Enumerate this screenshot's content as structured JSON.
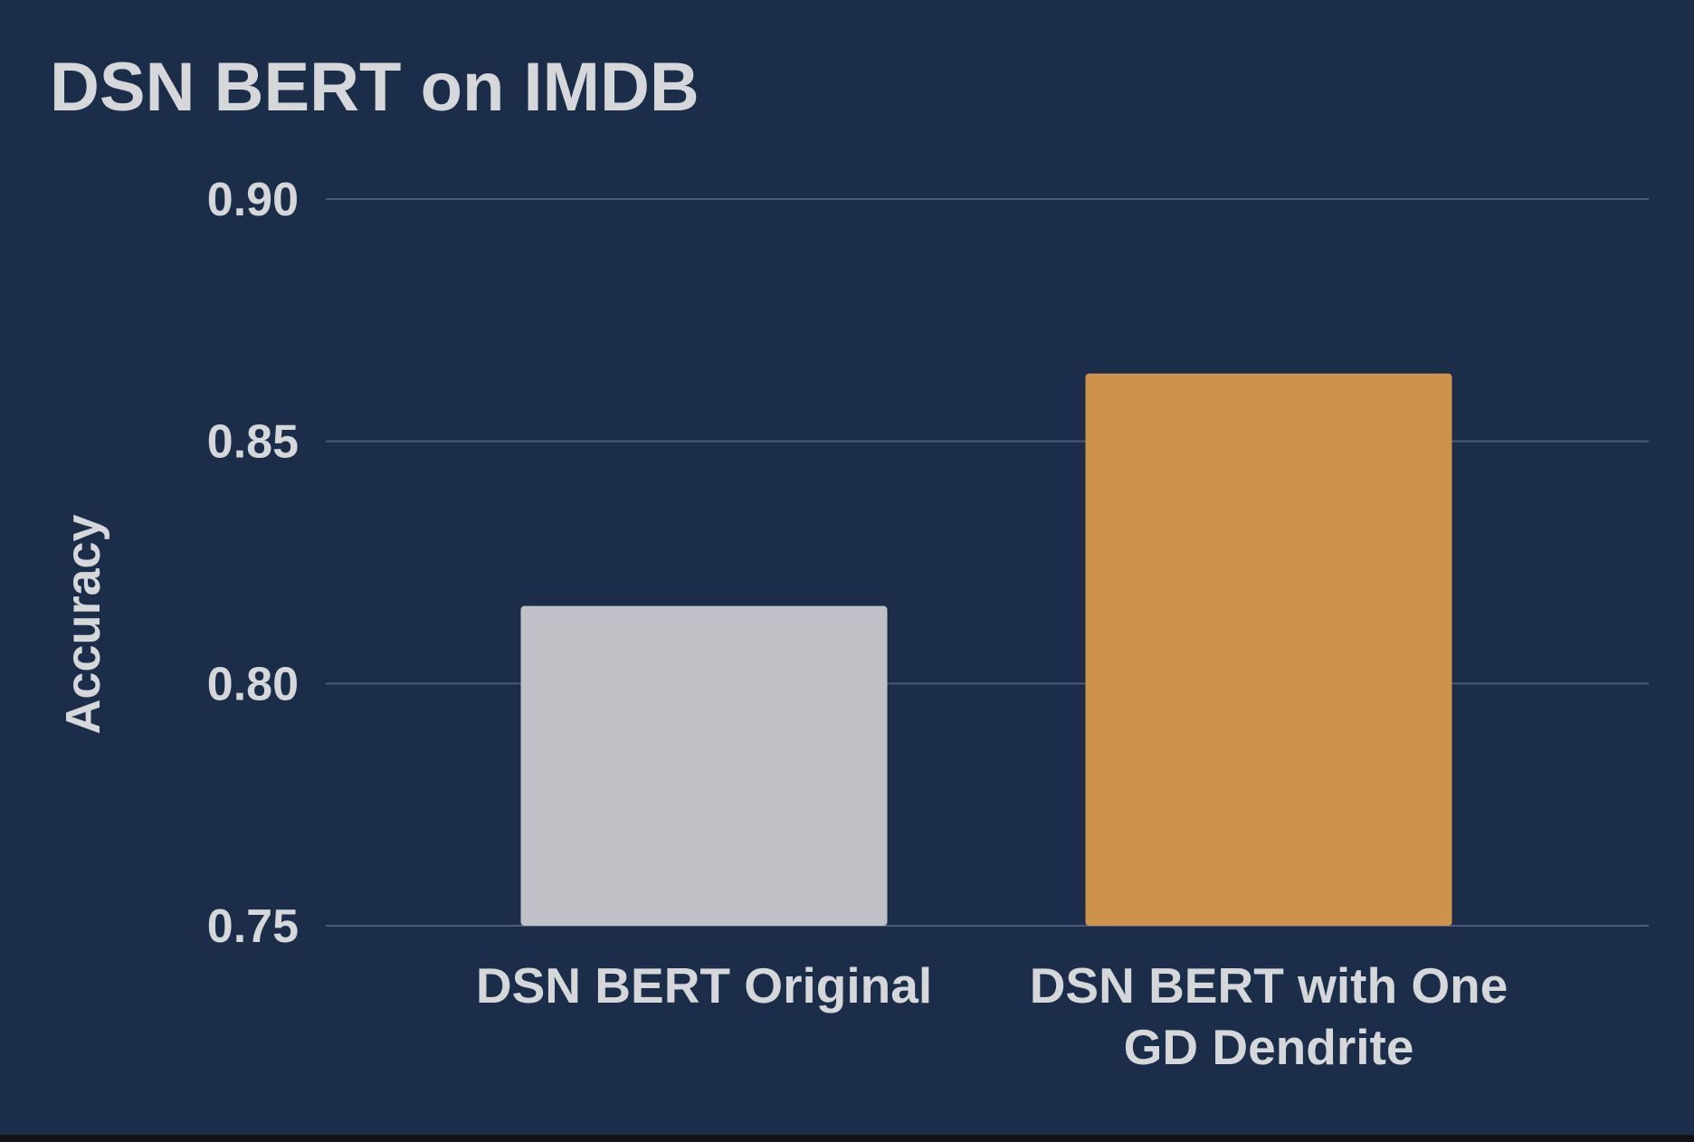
{
  "chart_data": {
    "type": "bar",
    "title": "DSN BERT on IMDB",
    "xlabel": "",
    "ylabel": "Accuracy",
    "categories": [
      [
        "DSN BERT Original"
      ],
      [
        "DSN BERT with One",
        "GD Dendrite"
      ]
    ],
    "values": [
      0.816,
      0.864
    ],
    "ylim": [
      0.75,
      0.9
    ],
    "yticks": [
      "0.90",
      "0.85",
      "0.80",
      "0.75"
    ],
    "ytick_values": [
      0.9,
      0.85,
      0.8,
      0.75
    ],
    "grid": true,
    "legend": "none",
    "colors": {
      "background": "#1c2d4a",
      "bars": [
        "#c0c1c6",
        "#cd934d"
      ],
      "text": "#d6d7db",
      "grid": "#4a5c78"
    }
  }
}
